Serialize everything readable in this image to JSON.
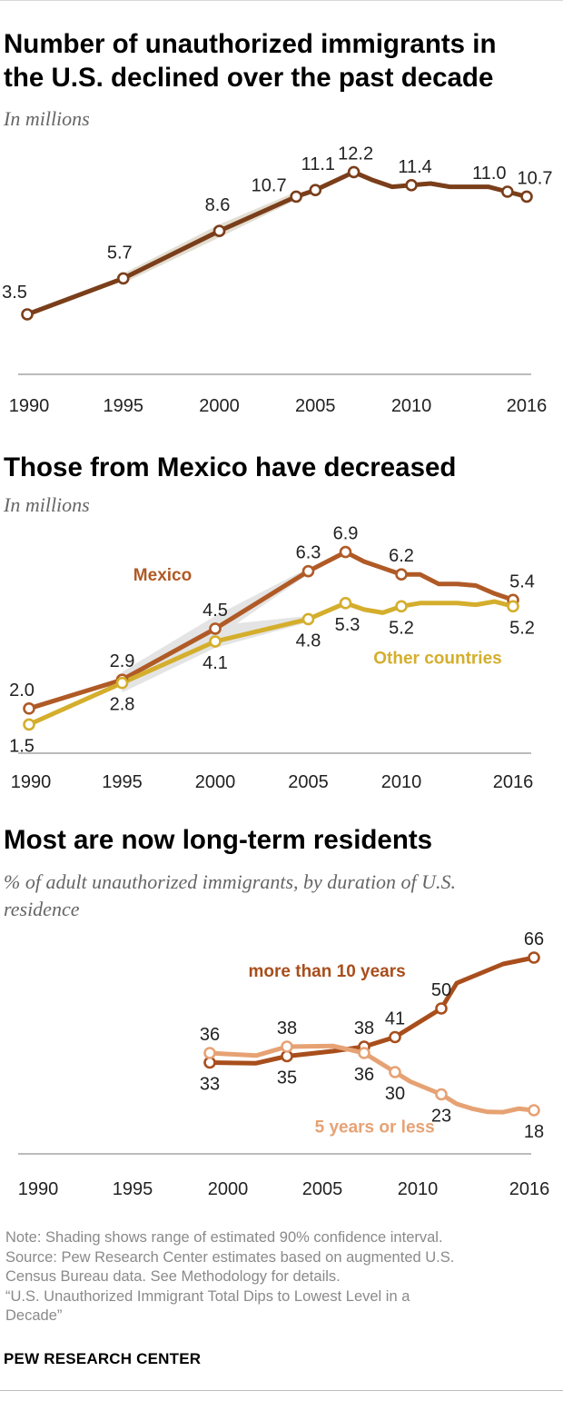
{
  "colors": {
    "total": "#7a3e1a",
    "mexico": "#b05a26",
    "other": "#d4ae2c",
    "long": "#a84e1c",
    "short": "#e6a274",
    "band": "#e2dccf",
    "band2": "#e3e3e3",
    "axis": "#bbbbbb",
    "text": "#222222"
  },
  "chart_data": [
    {
      "type": "line",
      "title": "Number of unauthorized immigrants in the U.S. declined over the past decade",
      "title_lines": [
        "Number of unauthorized immigrants in",
        "the U.S. declined over the past decade"
      ],
      "subtitle": "In millions",
      "x_ticks": [
        1990,
        1995,
        2000,
        2005,
        2010,
        2016
      ],
      "x_tick_labels": [
        "1990",
        "1995",
        "2000",
        "2005",
        "2010",
        "2016"
      ],
      "xlim": [
        1990,
        2016
      ],
      "ylim": [
        3,
        13
      ],
      "grid": false,
      "series": [
        {
          "key": "total",
          "x": [
            1990,
            1995,
            2000,
            2004,
            2005,
            2007,
            2008,
            2009,
            2010,
            2011,
            2012,
            2013,
            2014,
            2015,
            2016
          ],
          "values": [
            3.5,
            5.7,
            8.6,
            10.7,
            11.1,
            12.2,
            11.7,
            11.3,
            11.4,
            11.5,
            11.3,
            11.3,
            11.3,
            11.0,
            10.7
          ],
          "markers": [
            1990,
            1995,
            2000,
            2004,
            2005,
            2007,
            2010,
            2015,
            2016
          ]
        }
      ],
      "bands": [
        {
          "series": "total",
          "x": [
            1995,
            2000,
            2004
          ],
          "lower": [
            5.4,
            8.2,
            10.5
          ],
          "upper": [
            6.0,
            9.0,
            11.0
          ]
        }
      ],
      "data_labels": [
        {
          "x": 1990,
          "y": 3.5,
          "text": "3.5"
        },
        {
          "x": 1995,
          "y": 5.7,
          "text": "5.7"
        },
        {
          "x": 2000,
          "y": 8.6,
          "text": "8.6"
        },
        {
          "x": 2004,
          "y": 10.7,
          "text": "10.7"
        },
        {
          "x": 2005,
          "y": 11.1,
          "text": "11.1"
        },
        {
          "x": 2007,
          "y": 12.2,
          "text": "12.2"
        },
        {
          "x": 2010,
          "y": 11.4,
          "text": "11.4"
        },
        {
          "x": 2015,
          "y": 11.0,
          "text": "11.0"
        },
        {
          "x": 2016,
          "y": 10.7,
          "text": "10.7"
        }
      ],
      "series_labels": []
    },
    {
      "type": "line",
      "title": "Those from Mexico have decreased",
      "title_lines": [
        "Those from Mexico have decreased"
      ],
      "subtitle": "In millions",
      "x_ticks": [
        1990,
        1995,
        2000,
        2005,
        2010,
        2016
      ],
      "x_tick_labels": [
        "1990",
        "1995",
        "2000",
        "2005",
        "2010",
        "2016"
      ],
      "xlim": [
        1990,
        2016
      ],
      "ylim": [
        1.0,
        7.4
      ],
      "grid": false,
      "series": [
        {
          "key": "mexico",
          "name": "Mexico",
          "x": [
            1990,
            1995,
            2000,
            2005,
            2007,
            2008,
            2009,
            2010,
            2011,
            2012,
            2013,
            2014,
            2015,
            2016
          ],
          "values": [
            2.0,
            2.9,
            4.5,
            6.3,
            6.9,
            6.6,
            6.4,
            6.2,
            6.2,
            5.9,
            5.9,
            5.85,
            5.6,
            5.4
          ],
          "markers": [
            1990,
            1995,
            2000,
            2005,
            2007,
            2010,
            2016
          ]
        },
        {
          "key": "other",
          "name": "Other countries",
          "x": [
            1990,
            1995,
            2000,
            2005,
            2007,
            2008,
            2009,
            2010,
            2011,
            2012,
            2013,
            2014,
            2015,
            2016
          ],
          "values": [
            1.5,
            2.8,
            4.1,
            4.8,
            5.3,
            5.1,
            5.0,
            5.2,
            5.3,
            5.3,
            5.3,
            5.25,
            5.35,
            5.2
          ],
          "markers": [
            1990,
            1995,
            2000,
            2005,
            2007,
            2010,
            2016
          ]
        }
      ],
      "bands": [
        {
          "series": "mexico",
          "x": [
            1995,
            2000,
            2005
          ],
          "lower": [
            2.7,
            4.2,
            6.2
          ],
          "upper": [
            3.15,
            4.9,
            6.4
          ]
        },
        {
          "series": "other",
          "x": [
            1995,
            2000,
            2005
          ],
          "lower": [
            2.5,
            3.9,
            4.7
          ],
          "upper": [
            3.1,
            4.6,
            4.9
          ]
        }
      ],
      "data_labels": [
        {
          "x": 1990,
          "y": 2.0,
          "text": "2.0",
          "pos": "above"
        },
        {
          "x": 1995,
          "y": 2.9,
          "text": "2.9",
          "pos": "above"
        },
        {
          "x": 2000,
          "y": 4.5,
          "text": "4.5",
          "pos": "above"
        },
        {
          "x": 2005,
          "y": 6.3,
          "text": "6.3",
          "pos": "above"
        },
        {
          "x": 2007,
          "y": 6.9,
          "text": "6.9",
          "pos": "above"
        },
        {
          "x": 2010,
          "y": 6.2,
          "text": "6.2",
          "pos": "above"
        },
        {
          "x": 2016,
          "y": 5.4,
          "text": "5.4",
          "pos": "right-above"
        },
        {
          "x": 1990,
          "y": 1.5,
          "text": "1.5",
          "pos": "below"
        },
        {
          "x": 1995,
          "y": 2.8,
          "text": "2.8",
          "pos": "below"
        },
        {
          "x": 2000,
          "y": 4.1,
          "text": "4.1",
          "pos": "below"
        },
        {
          "x": 2005,
          "y": 4.8,
          "text": "4.8",
          "pos": "below"
        },
        {
          "x": 2007,
          "y": 5.3,
          "text": "5.3",
          "pos": "below"
        },
        {
          "x": 2010,
          "y": 5.2,
          "text": "5.2",
          "pos": "below"
        },
        {
          "x": 2016,
          "y": 5.2,
          "text": "5.2",
          "pos": "right-below"
        }
      ],
      "series_labels": [
        {
          "series": "mexico",
          "text": "Mexico",
          "x": 1995.6,
          "y": 6.0
        },
        {
          "series": "other",
          "text": "Other countries",
          "x": 2008.5,
          "y": 3.4
        }
      ]
    },
    {
      "type": "line",
      "title": "Most are now long-term residents",
      "title_lines": [
        "Most are now long-term residents"
      ],
      "subtitle": "% of adult unauthorized immigrants, by duration of U.S. residence",
      "subtitle_lines": [
        "% of adult unauthorized immigrants, by duration of U.S.",
        "residence"
      ],
      "x_ticks": [
        1990,
        1995,
        2000,
        2005,
        2010,
        2016
      ],
      "x_tick_labels": [
        "1990",
        "1995",
        "2000",
        "2005",
        "2010",
        "2016"
      ],
      "xlim": [
        1990,
        2016
      ],
      "ylim": [
        10,
        70
      ],
      "grid": false,
      "series": [
        {
          "key": "long",
          "name": "more than 10 years",
          "x": [
            1995,
            1998,
            2000,
            2003,
            2005,
            2007,
            2008,
            2009,
            2010,
            2011,
            2012,
            2013,
            2014,
            2015,
            2016
          ],
          "values": [
            33,
            32.8,
            35,
            36.6,
            38,
            41,
            44,
            47,
            50,
            58,
            60,
            62,
            64,
            65,
            66
          ],
          "markers": [
            1995,
            2000,
            2005,
            2007,
            2010,
            2016
          ]
        },
        {
          "key": "short",
          "name": "5 years or less",
          "x": [
            1995,
            1998,
            2000,
            2003,
            2005,
            2007,
            2008,
            2009,
            2010,
            2011,
            2012,
            2013,
            2014,
            2015,
            2016
          ],
          "values": [
            36,
            35.2,
            38,
            38.2,
            36,
            30,
            27,
            25,
            23,
            20,
            18.5,
            17.5,
            17.4,
            18.5,
            18
          ],
          "markers": [
            1995,
            2000,
            2005,
            2007,
            2010,
            2016
          ]
        }
      ],
      "bands": [],
      "data_labels": [
        {
          "x": 1995,
          "y": 36,
          "text": "36",
          "pos": "above"
        },
        {
          "x": 2000,
          "y": 38,
          "text": "38",
          "pos": "above"
        },
        {
          "x": 2005,
          "y": 38,
          "text": "38",
          "pos": "above"
        },
        {
          "x": 2007,
          "y": 41,
          "text": "41",
          "pos": "above"
        },
        {
          "x": 2010,
          "y": 50,
          "text": "50",
          "pos": "above"
        },
        {
          "x": 2016,
          "y": 66,
          "text": "66",
          "pos": "above"
        },
        {
          "x": 1995,
          "y": 33,
          "text": "33",
          "pos": "below"
        },
        {
          "x": 2000,
          "y": 35,
          "text": "35",
          "pos": "below"
        },
        {
          "x": 2005,
          "y": 36,
          "text": "36",
          "pos": "below"
        },
        {
          "x": 2007,
          "y": 30,
          "text": "30",
          "pos": "below"
        },
        {
          "x": 2010,
          "y": 23,
          "text": "23",
          "pos": "below"
        },
        {
          "x": 2016,
          "y": 18,
          "text": "18",
          "pos": "below"
        }
      ],
      "series_labels": [
        {
          "series": "long",
          "text": "more than 10 years",
          "x": 1997.5,
          "y": 60
        },
        {
          "series": "short",
          "text": "5 years or less",
          "x": 2001.8,
          "y": 11
        }
      ]
    }
  ],
  "note": {
    "lines": [
      "Note: Shading shows range of estimated 90% confidence interval.",
      "Source: Pew Research Center estimates based on augmented U.S.",
      "Census Bureau data. See Methodology for details.",
      "“U.S. Unauthorized Immigrant Total Dips to Lowest Level in a",
      "Decade”"
    ]
  },
  "brand": "PEW RESEARCH CENTER"
}
